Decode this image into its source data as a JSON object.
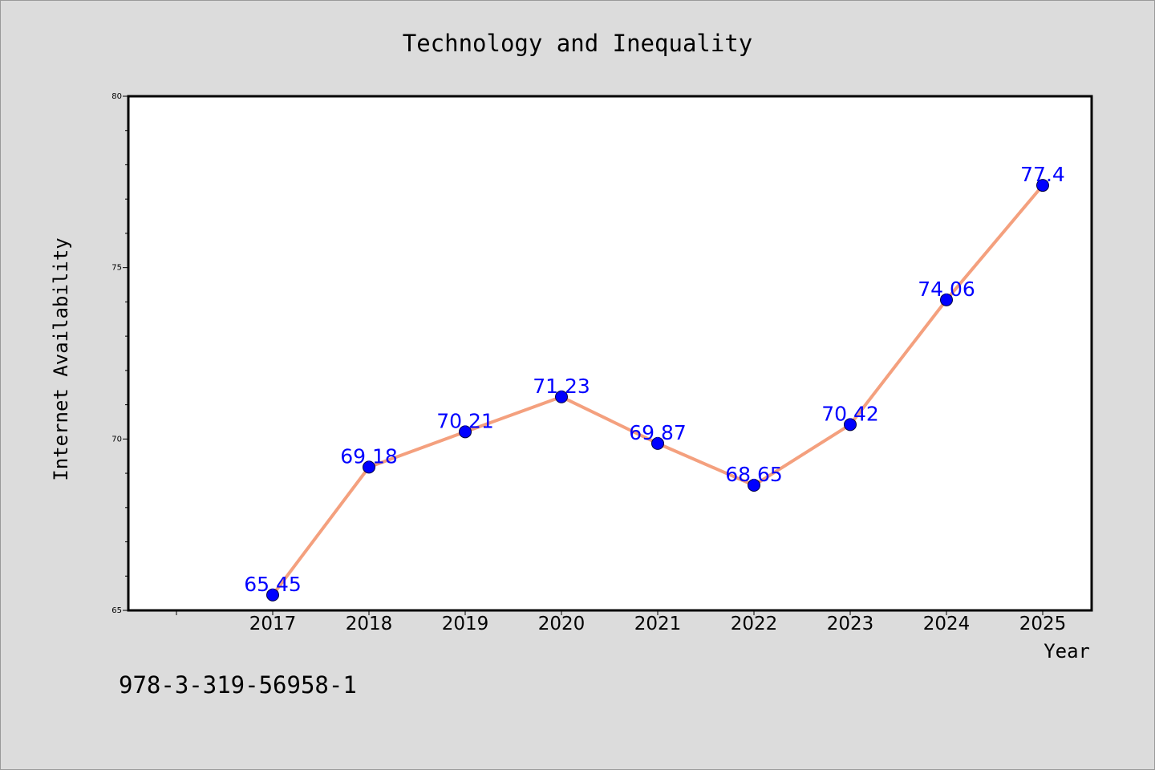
{
  "chart_data": {
    "type": "line",
    "title": "Technology and Inequality",
    "xlabel": "Year",
    "ylabel": "Internet Availability",
    "categories": [
      "2017",
      "2018",
      "2019",
      "2020",
      "2021",
      "2022",
      "2023",
      "2024",
      "2025"
    ],
    "series": [
      {
        "values": [
          65.45,
          69.18,
          70.21,
          71.23,
          69.87,
          68.65,
          70.42,
          74.06,
          77.4
        ],
        "data_labels": [
          "65.45",
          "69.18",
          "70.21",
          "71.23",
          "69.87",
          "68.65",
          "70.42",
          "74.06",
          "77.4"
        ],
        "line_color": "#f4a07e",
        "marker_color": "#0000ff"
      }
    ],
    "ylim": [
      65,
      80
    ],
    "y_ticks": [
      "65",
      "70",
      "75",
      "80"
    ],
    "grid": false,
    "legend": "none"
  },
  "footer": {
    "isbn": "978-3-319-56958-1"
  },
  "colors": {
    "background": "#dcdcdc",
    "plot_background": "#ffffff",
    "label_color": "#0000ff"
  }
}
